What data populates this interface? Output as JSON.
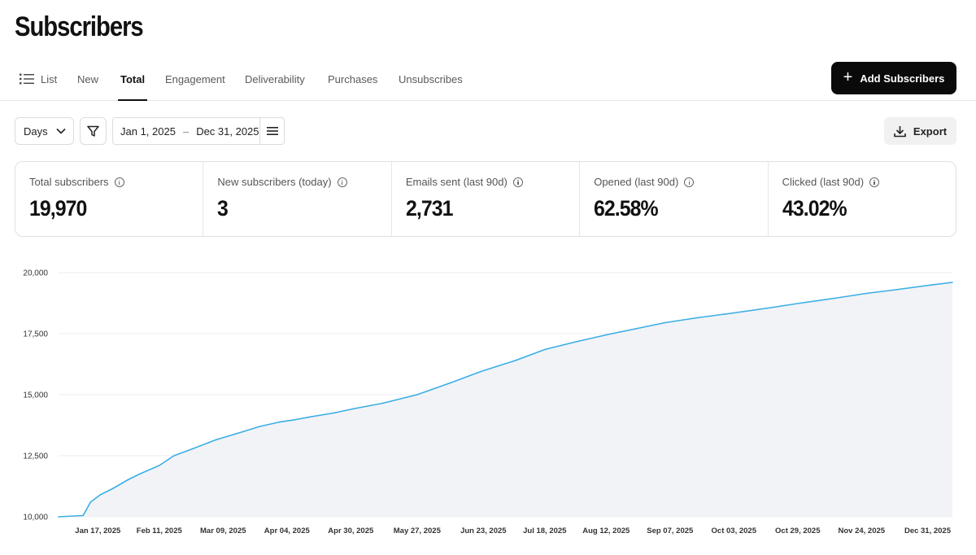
{
  "page": {
    "title": "Subscribers"
  },
  "tabs": [
    {
      "label": "List",
      "active": false,
      "icon": "list-icon"
    },
    {
      "label": "New",
      "active": false
    },
    {
      "label": "Total",
      "active": true
    },
    {
      "label": "Engagement",
      "active": false
    },
    {
      "label": "Deliverability",
      "active": false
    },
    {
      "label": "Purchases",
      "active": false
    },
    {
      "label": "Unsubscribes",
      "active": false
    }
  ],
  "actions": {
    "add_label": "Add Subscribers",
    "export_label": "Export"
  },
  "controls": {
    "interval": "Days",
    "date_start": "Jan 1, 2025",
    "date_separator": "–",
    "date_end": "Dec 31, 2025"
  },
  "stats": [
    {
      "label": "Total subscribers",
      "value": "19,970"
    },
    {
      "label": "New subscribers (today)",
      "value": "3"
    },
    {
      "label": "Emails sent (last 90d)",
      "value": "2,731"
    },
    {
      "label": "Opened (last 90d)",
      "value": "62.58%"
    },
    {
      "label": "Clicked (last 90d)",
      "value": "43.02%"
    }
  ],
  "colors": {
    "line": "#3aaee4",
    "area": "#f2f3f7",
    "accent": "#0a0a0a"
  },
  "chart_data": {
    "type": "area",
    "title": "",
    "xlabel": "",
    "ylabel": "",
    "ylim": [
      10000,
      20000
    ],
    "y_ticks": [
      10000,
      12500,
      15000,
      17500,
      20000
    ],
    "y_tick_labels": [
      "10,000",
      "12,500",
      "15,000",
      "17,500",
      "20,000"
    ],
    "x_tick_labels": [
      "Jan 17, 2025",
      "Feb 11, 2025",
      "Mar 09, 2025",
      "Apr 04, 2025",
      "Apr 30, 2025",
      "May 27, 2025",
      "Jun 23, 2025",
      "Jul 18, 2025",
      "Aug 12, 2025",
      "Sep 07, 2025",
      "Oct 03, 2025",
      "Oct 29, 2025",
      "Nov 24, 2025",
      "Dec 31, 2025"
    ],
    "x_tick_days": [
      16,
      41,
      67,
      93,
      119,
      146,
      173,
      198,
      223,
      249,
      275,
      301,
      327,
      364
    ],
    "series": [
      {
        "name": "Total subscribers",
        "x_days": [
          0,
          10,
          13,
          17,
          22,
          28,
          33,
          41,
          47,
          55,
          64,
          73,
          82,
          90,
          96,
          103,
          112,
          120,
          132,
          146,
          160,
          172,
          186,
          198,
          210,
          223,
          235,
          247,
          260,
          275,
          289,
          302,
          316,
          329,
          341,
          352,
          364
        ],
        "values": [
          10000,
          10050,
          10600,
          10900,
          11150,
          11500,
          11750,
          12100,
          12500,
          12800,
          13150,
          13420,
          13700,
          13880,
          13970,
          14100,
          14250,
          14420,
          14650,
          15000,
          15500,
          15950,
          16400,
          16850,
          17150,
          17450,
          17700,
          17950,
          18150,
          18350,
          18550,
          18750,
          18950,
          19150,
          19300,
          19450,
          19600
        ]
      }
    ]
  }
}
